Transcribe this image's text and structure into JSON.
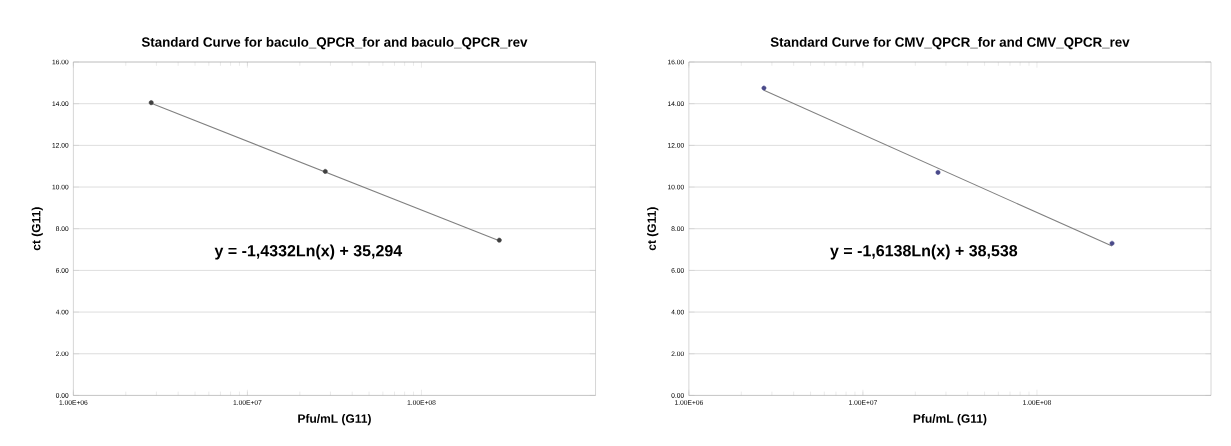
{
  "chart_data": [
    {
      "type": "scatter",
      "title": "Standard Curve for baculo_QPCR_for and baculo_QPCR_rev",
      "xlabel": "Pfu/mL (G11)",
      "ylabel": "ct (G11)",
      "annotations": [
        "y = -1,4332Ln(x) + 35,294"
      ],
      "series": [
        {
          "color": "#404040",
          "x": [
            2800000,
            28000000,
            280000000
          ],
          "values": [
            14.05,
            10.75,
            7.45
          ]
        },
        {
          "type": "line",
          "color": "#808080",
          "marker": "none",
          "x": [
            2800000,
            280000000
          ],
          "values": [
            14.02,
            7.42
          ]
        }
      ],
      "log": "x",
      "xlim": [
        1000000,
        1000000000
      ],
      "xticks": [
        {
          "value": 1000000,
          "label": "1.00E+06"
        },
        {
          "value": 10000000,
          "label": "1.00E+07"
        },
        {
          "value": 100000000,
          "label": "1.00E+08"
        }
      ],
      "ylim": [
        0,
        16
      ],
      "yticks": [
        {
          "value": 0,
          "label": "0.00"
        },
        {
          "value": 2,
          "label": "2.00"
        },
        {
          "value": 4,
          "label": "4.00"
        },
        {
          "value": 6,
          "label": "6.00"
        },
        {
          "value": 8,
          "label": "8.00"
        },
        {
          "value": 10,
          "label": "10.00"
        },
        {
          "value": 12,
          "label": "12.00"
        },
        {
          "value": 14,
          "label": "14.00"
        },
        {
          "value": 16,
          "label": "16.00"
        }
      ],
      "grid": "y",
      "marker": "circle",
      "legend": false
    },
    {
      "type": "scatter",
      "title": "Standard Curve for CMV_QPCR_for and CMV_QPCR_rev",
      "xlabel": "Pfu/mL (G11)",
      "ylabel": "ct (G11)",
      "annotations": [
        "y = -1,6138Ln(x) + 38,538"
      ],
      "series": [
        {
          "color": "#4a4a8a",
          "x": [
            2700000,
            27000000,
            270000000
          ],
          "values": [
            14.75,
            10.7,
            7.3
          ]
        },
        {
          "type": "line",
          "color": "#808080",
          "marker": "none",
          "x": [
            2700000,
            270000000
          ],
          "values": [
            14.64,
            7.17
          ]
        }
      ],
      "log": "x",
      "xlim": [
        1000000,
        1000000000
      ],
      "xticks": [
        {
          "value": 1000000,
          "label": "1.00E+06"
        },
        {
          "value": 10000000,
          "label": "1.00E+07"
        },
        {
          "value": 100000000,
          "label": "1.00E+08"
        }
      ],
      "ylim": [
        0,
        16
      ],
      "yticks": [
        {
          "value": 0,
          "label": "0.00"
        },
        {
          "value": 2,
          "label": "2.00"
        },
        {
          "value": 4,
          "label": "4.00"
        },
        {
          "value": 6,
          "label": "6.00"
        },
        {
          "value": 8,
          "label": "8.00"
        },
        {
          "value": 10,
          "label": "10.00"
        },
        {
          "value": 12,
          "label": "12.00"
        },
        {
          "value": 14,
          "label": "14.00"
        },
        {
          "value": 16,
          "label": "16.00"
        }
      ],
      "grid": "y",
      "marker": "circle",
      "legend": false
    }
  ]
}
